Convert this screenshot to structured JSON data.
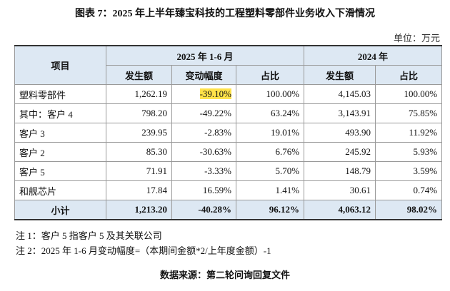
{
  "title": "图表 7：2025 年上半年臻宝科技的工程塑料零部件业务收入下滑情况",
  "unit": "单位：万元",
  "table": {
    "header": {
      "item": "项目",
      "group1": "2025 年 1-6 月",
      "group2": "2024 年",
      "columns": [
        "发生额",
        "变动幅度",
        "占比",
        "发生额",
        "占比"
      ]
    },
    "rows": [
      [
        "塑料零部件",
        "1,262.19",
        "-39.10%",
        "100.00%",
        "4,145.03",
        "100.00%"
      ],
      [
        "其中：客户 4",
        "798.20",
        "-49.22%",
        "63.24%",
        "3,143.91",
        "75.85%"
      ],
      [
        "客户 3",
        "239.95",
        "-2.83%",
        "19.01%",
        "493.90",
        "11.92%"
      ],
      [
        "客户 2",
        "85.30",
        "-30.63%",
        "6.76%",
        "245.92",
        "5.93%"
      ],
      [
        "客户 5",
        "71.91",
        "-3.33%",
        "5.70%",
        "148.79",
        "3.59%"
      ],
      [
        "和舰芯片",
        "17.84",
        "16.59%",
        "1.41%",
        "30.61",
        "0.74%"
      ]
    ],
    "total": [
      "小计",
      "1,213.20",
      "-40.28%",
      "96.12%",
      "4,063.12",
      "98.02%"
    ]
  },
  "notes": [
    "注 1：客户 5 指客户 5 及其关联公司",
    "注 2：2025 年 1-6 月变动幅度=（本期间金额*2/上年度金额）-1"
  ],
  "source": "数据来源：第二轮问询回复文件"
}
